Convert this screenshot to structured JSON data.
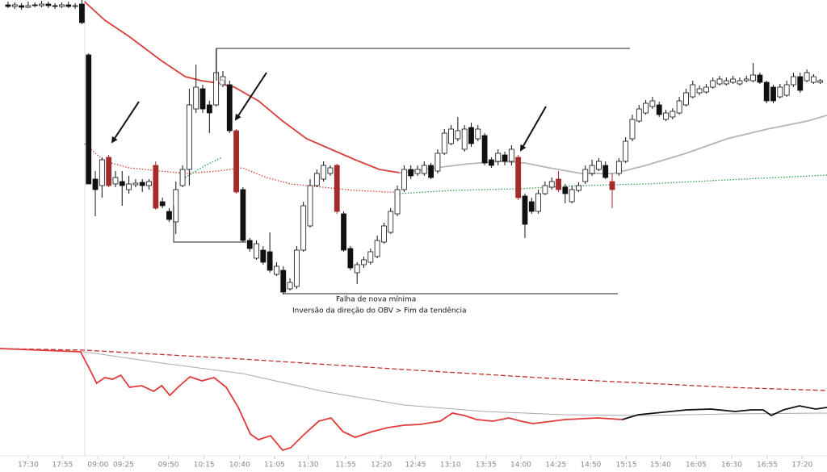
{
  "chart_data": {
    "type": "candlestick",
    "xlim": [
      -1.2,
      122
    ],
    "ylim": [
      15,
      600
    ],
    "xticks": [
      {
        "value": 3.0,
        "label": "17:30"
      },
      {
        "value": 8.1,
        "label": "17:55"
      },
      {
        "value": 13.4,
        "label": "09:00"
      },
      {
        "value": 17.2,
        "label": "09:25"
      },
      {
        "value": 23.9,
        "label": "09:50"
      },
      {
        "value": 29.2,
        "label": "10:15"
      },
      {
        "value": 34.5,
        "label": "10:40"
      },
      {
        "value": 39.7,
        "label": "11:05"
      },
      {
        "value": 44.7,
        "label": "11:30"
      },
      {
        "value": 50.3,
        "label": "11:55"
      },
      {
        "value": 55.6,
        "label": "12:20"
      },
      {
        "value": 60.7,
        "label": "12:45"
      },
      {
        "value": 65.9,
        "label": "13:10"
      },
      {
        "value": 71.2,
        "label": "13:35"
      },
      {
        "value": 76.4,
        "label": "14:00"
      },
      {
        "value": 81.6,
        "label": "14:25"
      },
      {
        "value": 86.8,
        "label": "14:50"
      },
      {
        "value": 92.1,
        "label": "15:15"
      },
      {
        "value": 97.2,
        "label": "15:40"
      },
      {
        "value": 102.5,
        "label": "16:05"
      },
      {
        "value": 107.8,
        "label": "16:30"
      },
      {
        "value": 113.1,
        "label": "16:55"
      },
      {
        "value": 118.3,
        "label": "17:20"
      }
    ],
    "annotations": [
      "Falha de nova mínima",
      "Inversão da direção do OBV > Fim da tendência"
    ],
    "up_color": "#ffffff",
    "down_color": "#111111",
    "highlight_color": "#a52a2a",
    "highlighted": [
      15,
      22,
      34,
      49,
      76,
      82,
      90
    ],
    "open": [
      594,
      592,
      593,
      591,
      594,
      593,
      595,
      593,
      592,
      594,
      592,
      595,
      532,
      378,
      370,
      405,
      372,
      375,
      365,
      371,
      374,
      370,
      395,
      350,
      338,
      325,
      370,
      390,
      465,
      490,
      470,
      470,
      495,
      495,
      438,
      365,
      302,
      280,
      290,
      288,
      260,
      265,
      242,
      245,
      290,
      320,
      370,
      378,
      385,
      395,
      335,
      292,
      262,
      272,
      275,
      282,
      300,
      312,
      335,
      365,
      390,
      385,
      385,
      395,
      388,
      410,
      422,
      428,
      415,
      442,
      428,
      432,
      402,
      400,
      408,
      400,
      405,
      357,
      350,
      338,
      360,
      368,
      378,
      368,
      350,
      364,
      375,
      385,
      390,
      395,
      375,
      385,
      400,
      428,
      450,
      460,
      468,
      470,
      452,
      455,
      460,
      470,
      480,
      485,
      486,
      492,
      496,
      496,
      498,
      496,
      500,
      500,
      507,
      498,
      492,
      480,
      482,
      495,
      505,
      500,
      498,
      498
    ],
    "high": [
      598,
      597,
      596,
      598,
      597,
      599,
      598,
      596,
      597,
      598,
      596,
      600,
      534,
      388,
      405,
      408,
      388,
      388,
      382,
      378,
      378,
      378,
      400,
      355,
      342,
      375,
      395,
      490,
      520,
      495,
      475,
      540,
      512,
      500,
      440,
      368,
      305,
      302,
      295,
      312,
      275,
      270,
      255,
      295,
      350,
      378,
      390,
      400,
      395,
      397,
      338,
      295,
      275,
      282,
      292,
      308,
      324,
      342,
      370,
      395,
      395,
      395,
      400,
      398,
      415,
      440,
      445,
      455,
      445,
      448,
      445,
      435,
      405,
      415,
      412,
      420,
      408,
      360,
      355,
      365,
      375,
      380,
      388,
      372,
      370,
      374,
      395,
      402,
      404,
      400,
      385,
      404,
      430,
      458,
      470,
      476,
      480,
      474,
      464,
      466,
      480,
      490,
      500,
      494,
      496,
      504,
      506,
      504,
      506,
      504,
      506,
      522,
      510,
      500,
      495,
      496,
      500,
      510,
      510,
      514,
      508,
      502
    ],
    "low": [
      590,
      589,
      588,
      590,
      591,
      591,
      590,
      589,
      590,
      590,
      589,
      570,
      372,
      332,
      355,
      368,
      368,
      345,
      360,
      368,
      362,
      365,
      340,
      342,
      325,
      310,
      368,
      370,
      460,
      460,
      435,
      468,
      492,
      435,
      360,
      300,
      288,
      278,
      272,
      262,
      258,
      235,
      240,
      242,
      288,
      318,
      368,
      375,
      382,
      335,
      288,
      265,
      248,
      268,
      272,
      280,
      298,
      310,
      332,
      362,
      378,
      382,
      382,
      378,
      385,
      408,
      420,
      425,
      412,
      418,
      425,
      395,
      392,
      395,
      395,
      395,
      352,
      305,
      335,
      335,
      358,
      365,
      362,
      348,
      348,
      362,
      372,
      382,
      388,
      378,
      342,
      382,
      398,
      425,
      448,
      458,
      465,
      455,
      450,
      452,
      458,
      468,
      478,
      482,
      484,
      490,
      494,
      494,
      496,
      494,
      498,
      498,
      496,
      472,
      472,
      478,
      480,
      492,
      485,
      498,
      496,
      496
    ],
    "close": [
      592,
      594,
      591,
      593,
      593,
      595,
      593,
      592,
      594,
      592,
      593,
      572,
      372,
      365,
      402,
      370,
      380,
      370,
      372,
      373,
      370,
      375,
      342,
      345,
      328,
      365,
      390,
      470,
      492,
      465,
      460,
      510,
      505,
      438,
      362,
      302,
      292,
      298,
      275,
      265,
      270,
      238,
      250,
      290,
      345,
      370,
      385,
      395,
      392,
      338,
      290,
      268,
      272,
      278,
      288,
      302,
      320,
      338,
      365,
      390,
      382,
      390,
      395,
      380,
      410,
      435,
      440,
      438,
      440,
      422,
      440,
      398,
      395,
      410,
      400,
      415,
      355,
      322,
      338,
      360,
      370,
      375,
      365,
      360,
      365,
      370,
      390,
      395,
      400,
      380,
      365,
      400,
      425,
      452,
      465,
      472,
      475,
      458,
      460,
      462,
      475,
      485,
      495,
      490,
      492,
      500,
      502,
      500,
      502,
      500,
      502,
      507,
      498,
      475,
      475,
      492,
      495,
      505,
      488,
      510,
      505,
      500
    ],
    "series": [
      {
        "color": "#d6403a",
        "style": "solid",
        "x": [
          11.4,
          14.4,
          18.0,
          22.8,
          26.4,
          28.8,
          31.3,
          33.7,
          37.3,
          40.9,
          44.5,
          48.1,
          51.7,
          55.3,
          58.3
        ],
        "values": [
          598,
          575,
          555,
          525,
          505,
          500,
          497,
          492,
          475,
          450,
          428,
          415,
          402,
          390,
          386
        ]
      },
      {
        "color": "#b4b4bc",
        "style": "solid",
        "x": [
          58.3,
          63.7,
          68.6,
          73.4,
          77.0,
          80.6,
          85.4,
          90.2,
          95.0,
          101.0,
          107.1,
          113.1,
          119.1,
          122.0
        ],
        "values": [
          386,
          392,
          397,
          400,
          398,
          392,
          385,
          385,
          395,
          410,
          428,
          440,
          450,
          457
        ]
      },
      {
        "color": "#d6403a",
        "style": "dotted",
        "x": [
          11.4,
          14.4,
          18.0,
          22.8,
          26.4,
          31.3,
          34.9,
          38.5,
          42.1,
          46.9,
          51.7,
          56.5,
          58.3
        ],
        "values": [
          422,
          400,
          392,
          388,
          385,
          388,
          392,
          380,
          372,
          368,
          364,
          362,
          362
        ]
      },
      {
        "color": "#2e9e4a",
        "style": "dotted",
        "x": [
          26.4,
          29.4,
          31.9
        ],
        "values": [
          380,
          395,
          405
        ]
      },
      {
        "color": "#2e9e4a",
        "style": "dotted",
        "x": [
          58.3,
          66.2,
          75.8,
          85.4,
          95.0,
          107.1,
          122.0
        ],
        "values": [
          360,
          364,
          366,
          370,
          372,
          377,
          383
        ]
      },
      {
        "color": "#c03030",
        "style": "dashed",
        "x": [
          -1.2,
          11.4,
          34.9,
          59.0,
          83.0,
          107.1,
          122.0
        ],
        "values": [
          168,
          166,
          155,
          142,
          130,
          120,
          116
        ]
      },
      {
        "color": "#a8a8b0",
        "style": "thin",
        "x": [
          -1.2,
          11.4,
          22.9,
          34.9,
          46.9,
          59.0,
          71.0,
          83.0,
          95.1,
          107.1,
          122.0
        ],
        "values": [
          168,
          164,
          150,
          137,
          115,
          98,
          90,
          86,
          85,
          87,
          88
        ]
      },
      {
        "color": "#e03a3a",
        "style": "solid",
        "x": [
          -1.2,
          10.8,
          12.0,
          13.2,
          14.4,
          15.6,
          16.8,
          18.1,
          19.9,
          21.7,
          22.9,
          24.1,
          25.3,
          27.1,
          28.9,
          30.7,
          32.5,
          34.3,
          36.1,
          37.3,
          39.1,
          40.9,
          42.1,
          43.9,
          46.3,
          48.1,
          49.9,
          51.7,
          54.2,
          56.6,
          59.0,
          61.4,
          64.4,
          66.2,
          68.0,
          69.8,
          72.2,
          74.6,
          76.4,
          78.2,
          83.0,
          87.8,
          91.5
        ],
        "values": [
          168,
          164,
          145,
          125,
          132,
          130,
          135,
          120,
          122,
          115,
          122,
          110,
          120,
          133,
          128,
          132,
          120,
          95,
          62,
          55,
          60,
          42,
          45,
          60,
          78,
          82,
          65,
          58,
          65,
          70,
          73,
          74,
          78,
          88,
          85,
          80,
          78,
          82,
          78,
          75,
          80,
          82,
          80
        ]
      },
      {
        "color": "#111111",
        "style": "solid",
        "x": [
          91.5,
          93.9,
          96.3,
          98.7,
          101.1,
          104.7,
          108.3,
          110.7,
          112.5,
          113.7,
          115.5,
          117.9,
          120.3,
          122.0
        ],
        "values": [
          80,
          86,
          88,
          90,
          92,
          93,
          90,
          92,
          92,
          85,
          92,
          97,
          93,
          95
        ]
      }
    ]
  }
}
